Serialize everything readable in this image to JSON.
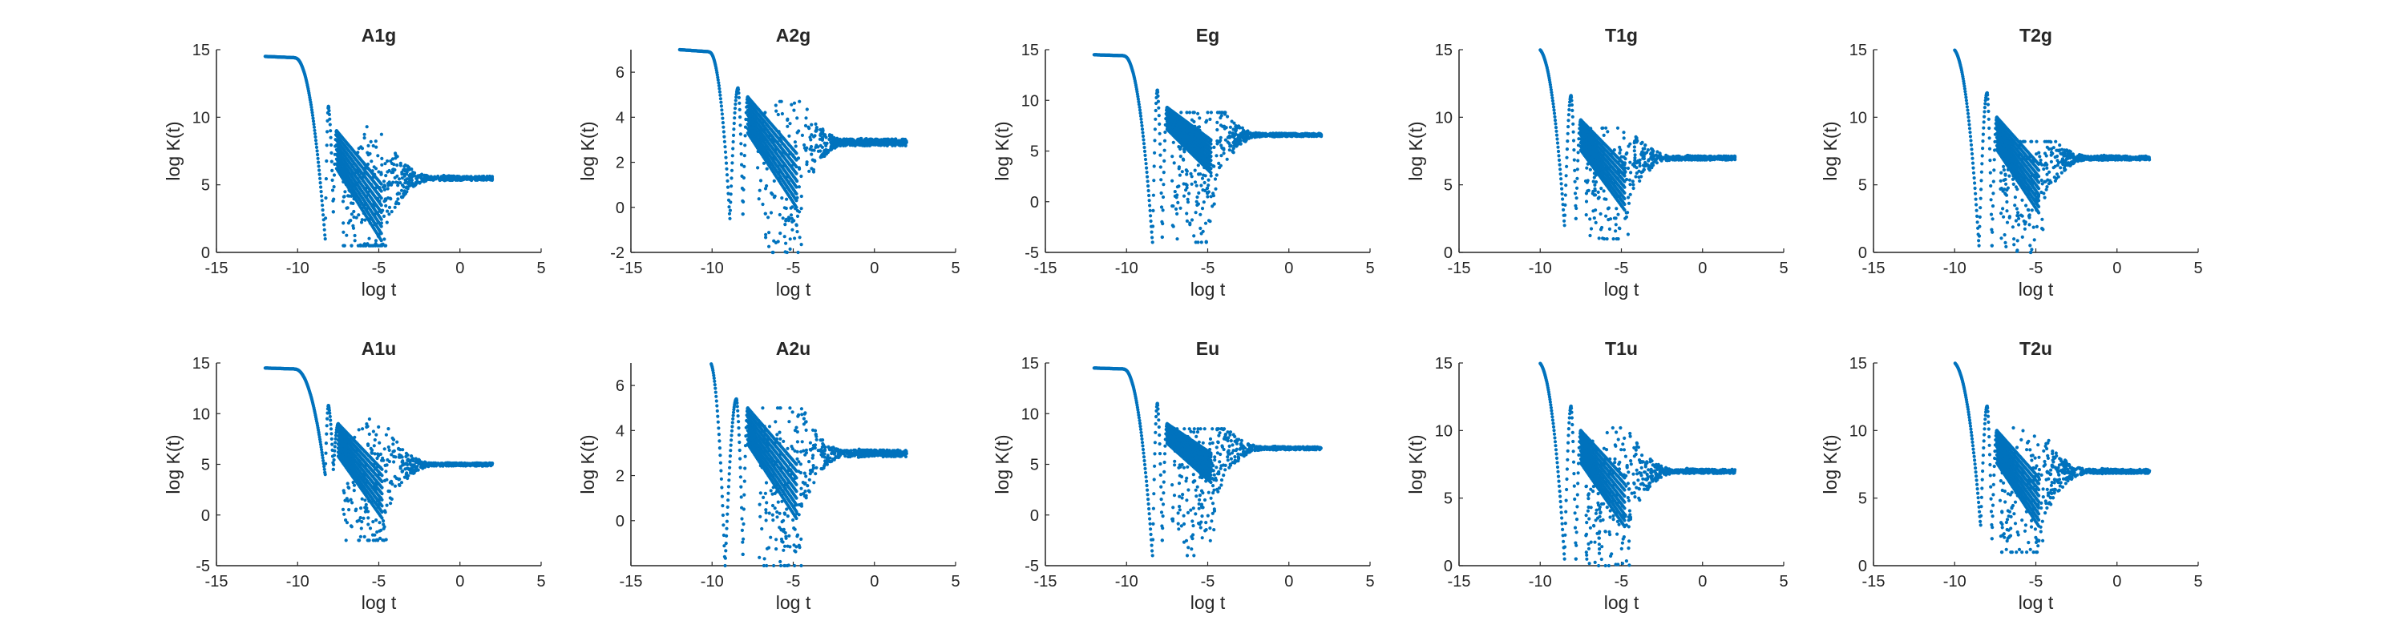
{
  "figure": {
    "marker_color": "#0072BD",
    "axis_color": "#262626",
    "grid": false
  },
  "chart_data": [
    {
      "type": "scatter",
      "title": "A1g",
      "xlabel": "log t",
      "ylabel": "log K(t)",
      "xlim": [
        -15,
        5
      ],
      "ylim": [
        0,
        15
      ],
      "xticks": [
        -15,
        -10,
        -5,
        0,
        5
      ],
      "yticks": [
        0,
        5,
        10,
        15
      ],
      "series": [
        {
          "values_desc": "",
          "plateau": 14.5,
          "dip1": [
            -8.3,
            1.0
          ],
          "peak1": [
            -8.1,
            10.8
          ],
          "dip2": [
            -7.8,
            3.0
          ],
          "peak2": [
            -7.6,
            9.0
          ],
          "scatter_low": 0.5,
          "scatter_high": 10,
          "final": 5.5
        }
      ]
    },
    {
      "type": "scatter",
      "title": "A2g",
      "xlabel": "log t",
      "ylabel": "log K(t)",
      "xlim": [
        -15,
        5
      ],
      "ylim": [
        -2,
        7
      ],
      "xticks": [
        -15,
        -10,
        -5,
        0,
        5
      ],
      "yticks": [
        -2,
        0,
        2,
        4,
        6
      ],
      "series": [
        {
          "values_desc": "",
          "plateau": 7.0,
          "dip1": [
            -8.9,
            -0.5
          ],
          "peak1": [
            -8.4,
            5.3
          ],
          "dip2": [
            -8.1,
            -0.3
          ],
          "peak2": [
            -7.8,
            4.9
          ],
          "scatter_low": -2,
          "scatter_high": 4.7,
          "final": 2.9
        }
      ]
    },
    {
      "type": "scatter",
      "title": "Eg",
      "xlabel": "log t",
      "ylabel": "log K(t)",
      "xlim": [
        -15,
        5
      ],
      "ylim": [
        -5,
        15
      ],
      "xticks": [
        -15,
        -10,
        -5,
        0,
        5
      ],
      "yticks": [
        -5,
        0,
        5,
        10,
        15
      ],
      "series": [
        {
          "values_desc": "",
          "plateau": 14.5,
          "dip1": [
            -8.4,
            -4.0
          ],
          "peak1": [
            -8.1,
            11.0
          ],
          "dip2": [
            -7.8,
            -3.5
          ],
          "peak2": [
            -7.5,
            9.3
          ],
          "scatter_low": -4,
          "scatter_high": 8.8,
          "final": 6.6
        }
      ]
    },
    {
      "type": "scatter",
      "title": "T1g",
      "xlabel": "log t",
      "ylabel": "log K(t)",
      "xlim": [
        -15,
        5
      ],
      "ylim": [
        0,
        15
      ],
      "xticks": [
        -15,
        -10,
        -5,
        0,
        5
      ],
      "yticks": [
        0,
        5,
        10,
        15
      ],
      "series": [
        {
          "values_desc": "",
          "plateau": 15.2,
          "dip1": [
            -8.5,
            2.0
          ],
          "peak1": [
            -8.1,
            11.6
          ],
          "dip2": [
            -7.8,
            2.5
          ],
          "peak2": [
            -7.5,
            9.8
          ],
          "scatter_low": 1.0,
          "scatter_high": 9.2,
          "final": 7.0
        }
      ]
    },
    {
      "type": "scatter",
      "title": "T2g",
      "xlabel": "log t",
      "ylabel": "log K(t)",
      "xlim": [
        -15,
        5
      ],
      "ylim": [
        0,
        15
      ],
      "xticks": [
        -15,
        -10,
        -5,
        0,
        5
      ],
      "yticks": [
        0,
        5,
        10,
        15
      ],
      "series": [
        {
          "values_desc": "",
          "plateau": 15.2,
          "dip1": [
            -8.5,
            0.5
          ],
          "peak1": [
            -8.0,
            11.8
          ],
          "dip2": [
            -7.7,
            0.5
          ],
          "peak2": [
            -7.4,
            10.0
          ],
          "scatter_low": 0,
          "scatter_high": 8.2,
          "final": 7.0
        }
      ]
    },
    {
      "type": "scatter",
      "title": "A1u",
      "xlabel": "log t",
      "ylabel": "log K(t)",
      "xlim": [
        -15,
        5
      ],
      "ylim": [
        -5,
        15
      ],
      "xticks": [
        -15,
        -10,
        -5,
        0,
        5
      ],
      "yticks": [
        -5,
        0,
        5,
        10,
        15
      ],
      "series": [
        {
          "values_desc": "",
          "plateau": 14.5,
          "dip1": [
            -8.3,
            4.0
          ],
          "peak1": [
            -8.1,
            10.8
          ],
          "dip2": [
            -7.8,
            4.5
          ],
          "peak2": [
            -7.5,
            9.0
          ],
          "scatter_low": -2.5,
          "scatter_high": 9.8,
          "final": 5.0
        }
      ]
    },
    {
      "type": "scatter",
      "title": "A2u",
      "xlabel": "log t",
      "ylabel": "log K(t)",
      "xlim": [
        -15,
        5
      ],
      "ylim": [
        -2,
        7
      ],
      "xticks": [
        -15,
        -10,
        -5,
        0,
        5
      ],
      "yticks": [
        0,
        2,
        4,
        6
      ],
      "series": [
        {
          "values_desc": "",
          "plateau": 7.2,
          "dip1": [
            -9.2,
            -2.0
          ],
          "peak1": [
            -8.5,
            5.4
          ],
          "dip2": [
            -8.1,
            -1.5
          ],
          "peak2": [
            -7.8,
            5.0
          ],
          "scatter_low": -2,
          "scatter_high": 5.0,
          "final": 3.0
        }
      ]
    },
    {
      "type": "scatter",
      "title": "Eu",
      "xlabel": "log t",
      "ylabel": "log K(t)",
      "xlim": [
        -15,
        5
      ],
      "ylim": [
        -5,
        15
      ],
      "xticks": [
        -15,
        -10,
        -5,
        0,
        5
      ],
      "yticks": [
        -5,
        0,
        5,
        10,
        15
      ],
      "series": [
        {
          "values_desc": "",
          "plateau": 14.5,
          "dip1": [
            -8.4,
            -4.0
          ],
          "peak1": [
            -8.1,
            11.0
          ],
          "dip2": [
            -7.8,
            -2.5
          ],
          "peak2": [
            -7.5,
            9.0
          ],
          "scatter_low": -4,
          "scatter_high": 8.5,
          "final": 6.6
        }
      ]
    },
    {
      "type": "scatter",
      "title": "T1u",
      "xlabel": "log t",
      "ylabel": "log K(t)",
      "xlim": [
        -15,
        5
      ],
      "ylim": [
        0,
        15
      ],
      "xticks": [
        -15,
        -10,
        -5,
        0,
        5
      ],
      "yticks": [
        0,
        5,
        10,
        15
      ],
      "series": [
        {
          "values_desc": "",
          "plateau": 15.2,
          "dip1": [
            -8.5,
            0.5
          ],
          "peak1": [
            -8.1,
            11.8
          ],
          "dip2": [
            -7.8,
            0.5
          ],
          "peak2": [
            -7.5,
            10.0
          ],
          "scatter_low": 0,
          "scatter_high": 10.2,
          "final": 7.0
        }
      ]
    },
    {
      "type": "scatter",
      "title": "T2u",
      "xlabel": "log t",
      "ylabel": "log K(t)",
      "xlim": [
        -15,
        5
      ],
      "ylim": [
        0,
        15
      ],
      "xticks": [
        -15,
        -10,
        -5,
        0,
        5
      ],
      "yticks": [
        0,
        5,
        10,
        15
      ],
      "series": [
        {
          "values_desc": "",
          "plateau": 15.2,
          "dip1": [
            -8.4,
            3.0
          ],
          "peak1": [
            -8.0,
            11.8
          ],
          "dip2": [
            -7.7,
            2.0
          ],
          "peak2": [
            -7.4,
            10.0
          ],
          "scatter_low": 1.0,
          "scatter_high": 10.2,
          "final": 7.0
        }
      ]
    }
  ]
}
